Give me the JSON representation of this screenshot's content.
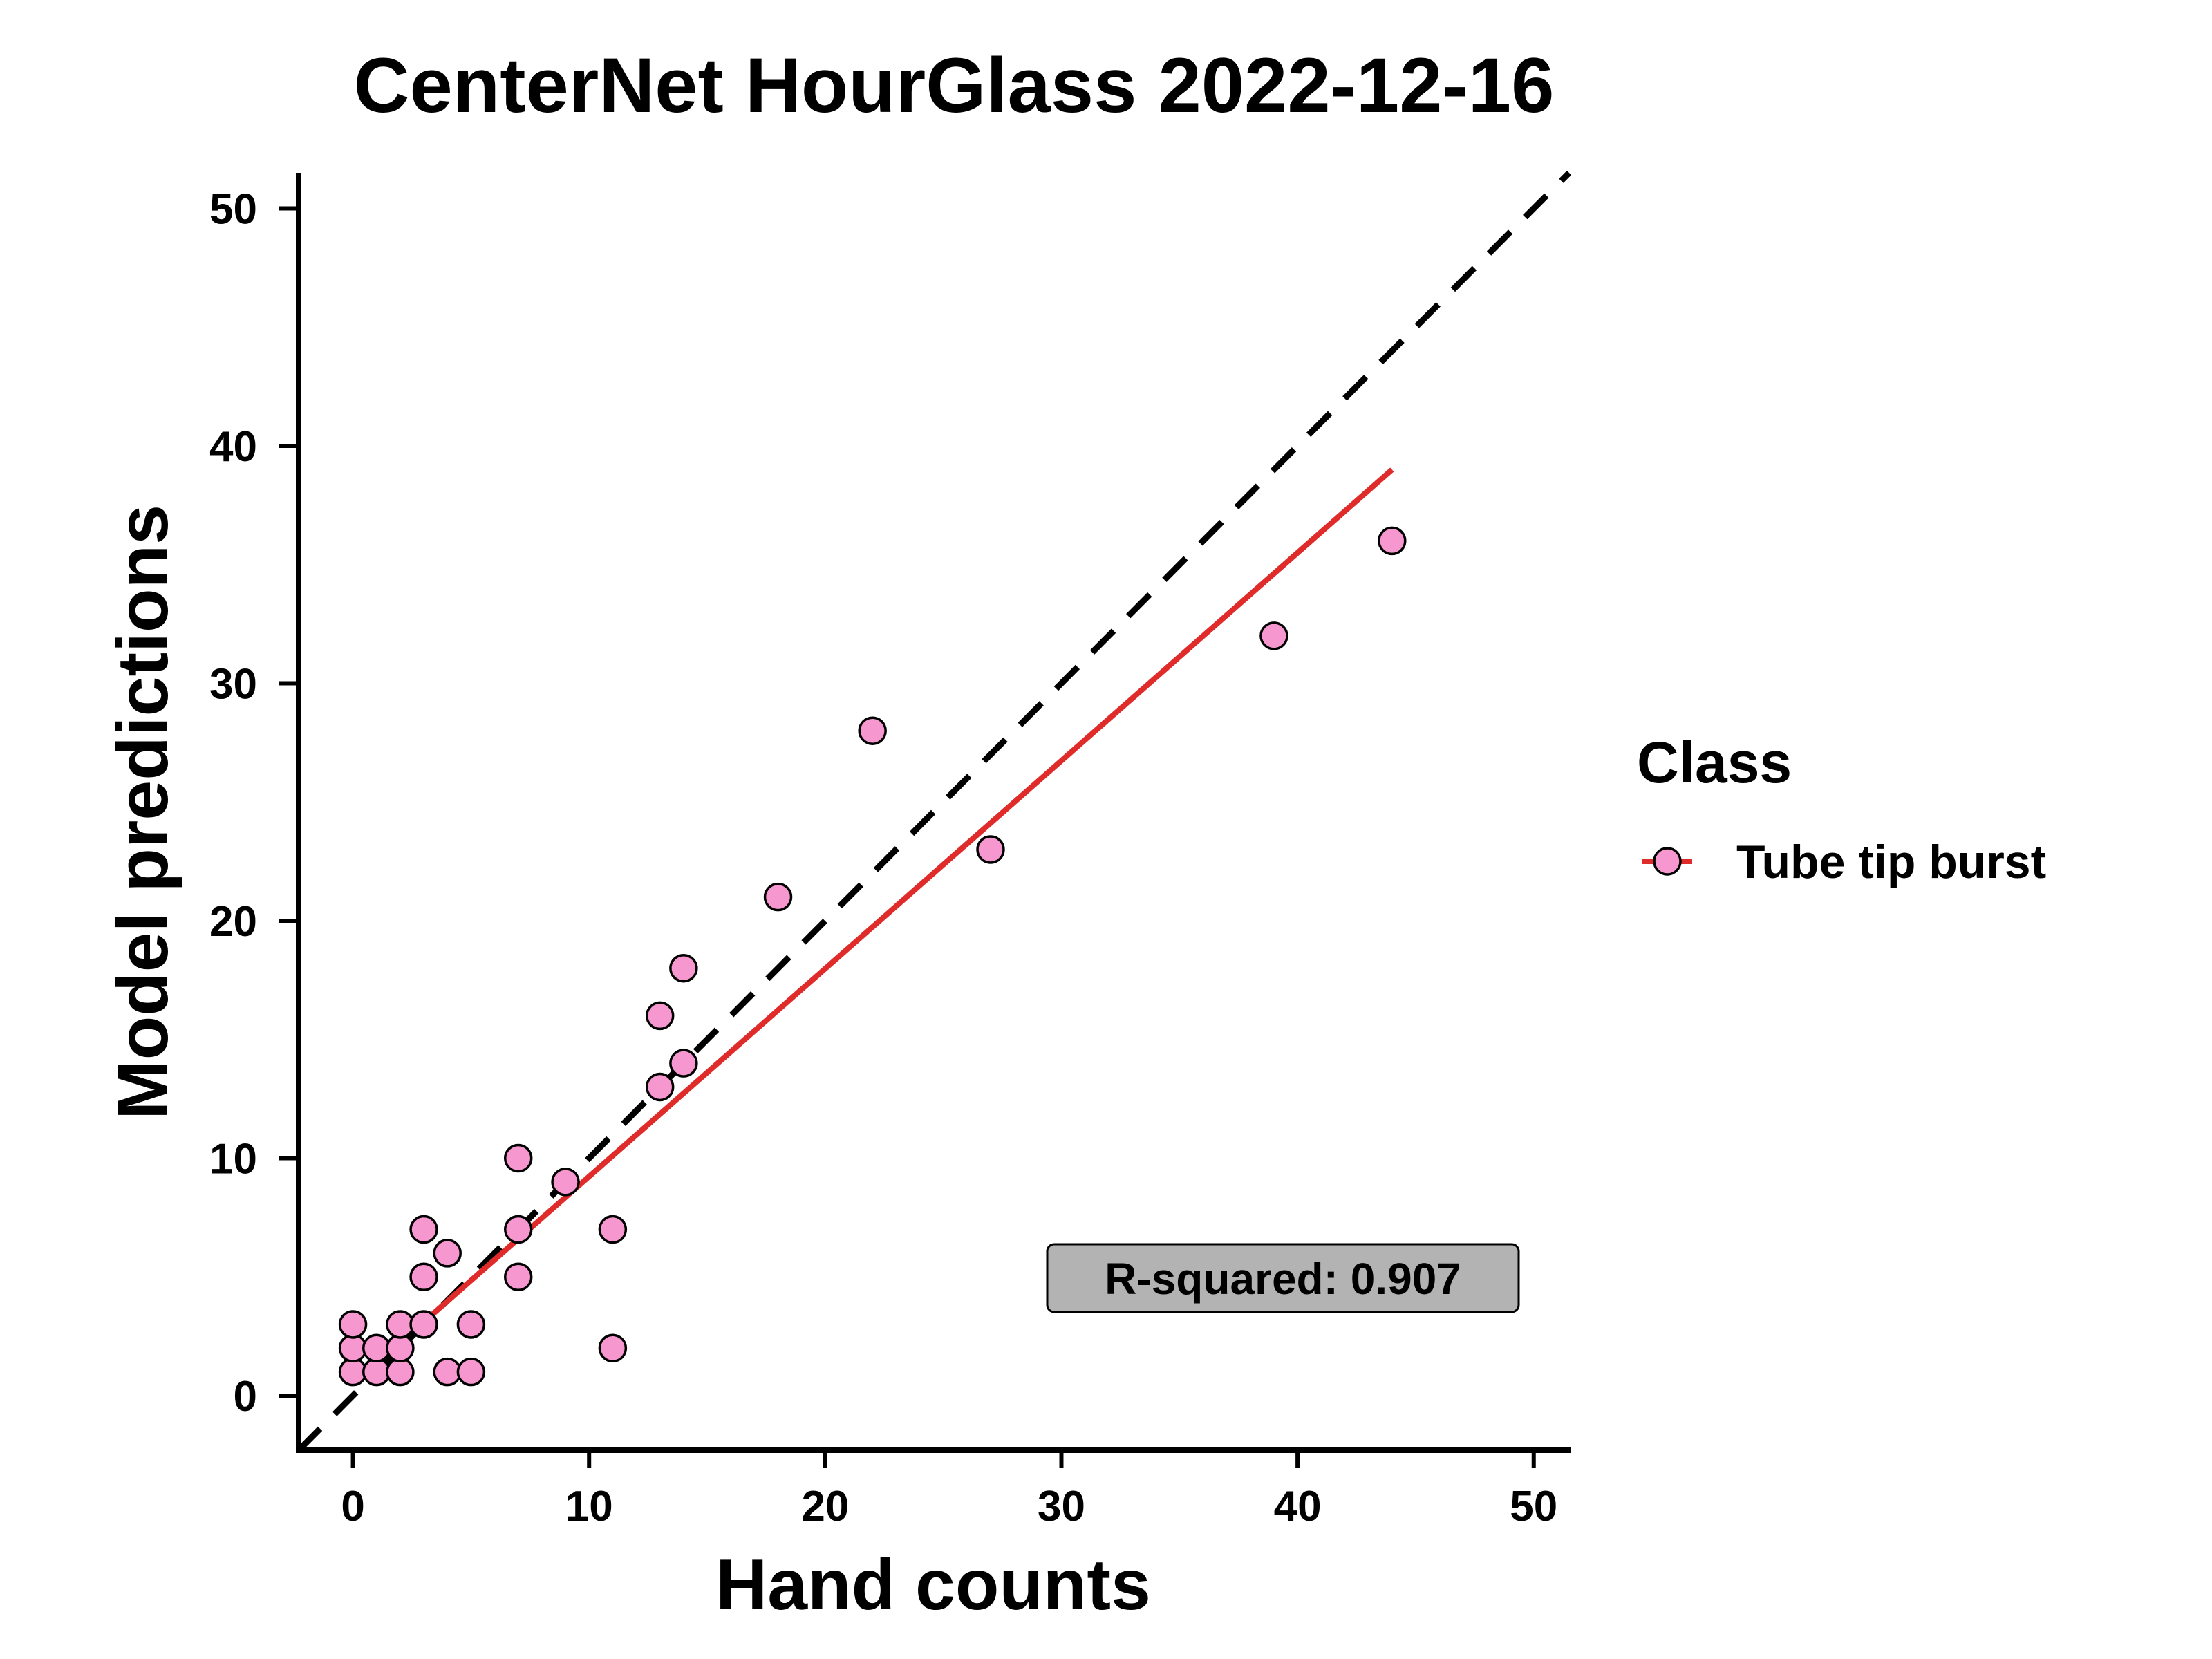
{
  "chart_data": {
    "type": "scatter",
    "title": "CenterNet HourGlass 2022-12-16",
    "xlabel": "Hand counts",
    "ylabel": "Model predictions",
    "xlim": [
      -2.3,
      51.5
    ],
    "ylim": [
      -2.3,
      51.5
    ],
    "xticks": [
      0,
      10,
      20,
      30,
      40,
      50
    ],
    "yticks": [
      0,
      10,
      20,
      30,
      40,
      50
    ],
    "grid": false,
    "legend": {
      "title": "Class",
      "position": "right",
      "entries": [
        "Tube tip burst"
      ]
    },
    "series": [
      {
        "name": "Tube tip burst",
        "color": "#f797d0",
        "points": [
          [
            0,
            1
          ],
          [
            0,
            2
          ],
          [
            0,
            3
          ],
          [
            1,
            1
          ],
          [
            1,
            2
          ],
          [
            2,
            1
          ],
          [
            2,
            2
          ],
          [
            2,
            3
          ],
          [
            3,
            3
          ],
          [
            3,
            5
          ],
          [
            3,
            7
          ],
          [
            4,
            1
          ],
          [
            4,
            6
          ],
          [
            5,
            1
          ],
          [
            5,
            3
          ],
          [
            7,
            5
          ],
          [
            7,
            7
          ],
          [
            7,
            10
          ],
          [
            9,
            9
          ],
          [
            11,
            2
          ],
          [
            11,
            7
          ],
          [
            13,
            13
          ],
          [
            13,
            16
          ],
          [
            14,
            14
          ],
          [
            14,
            18
          ],
          [
            18,
            21
          ],
          [
            22,
            28
          ],
          [
            27,
            23
          ],
          [
            39,
            32
          ],
          [
            44,
            36
          ]
        ]
      }
    ],
    "regression_line": {
      "color": "#e02b2b",
      "x": [
        3,
        44
      ],
      "y": [
        3.1,
        39.0
      ]
    },
    "identity_line": {
      "style": "dashed",
      "color": "#000000",
      "x": [
        -2.3,
        51.5
      ],
      "y": [
        -2.3,
        51.5
      ]
    },
    "annotation": {
      "text": "R-squared: 0.907",
      "x": 39.5,
      "y": 5
    }
  }
}
